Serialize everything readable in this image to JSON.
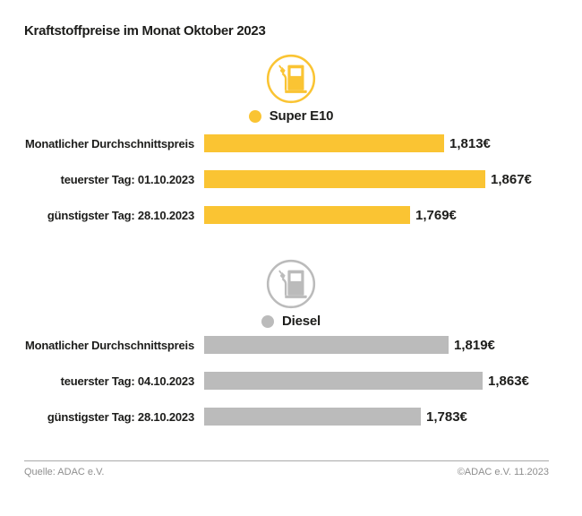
{
  "title": "Kraftstoffpreise im Monat Oktober 2023",
  "footer": {
    "source": "Quelle: ADAC e.V.",
    "copyright": "©ADAC e.V. 11.2023"
  },
  "colors": {
    "super_e10": "#FAC433",
    "diesel": "#BBBBBB",
    "text": "#1D1D1B",
    "footer_text": "#8E8E8E",
    "rule": "#A9A9A9"
  },
  "chart_data": [
    {
      "type": "bar",
      "orientation": "horizontal",
      "title": "Super E10",
      "icon": "fuel-pump-icon",
      "color": "#FAC433",
      "categories": [
        "Monatlicher Durchschnittspreis",
        "teuerster Tag: 01.10.2023",
        "günstigster Tag: 28.10.2023"
      ],
      "values": [
        1.813,
        1.867,
        1.769
      ],
      "value_labels": [
        "1,813€",
        "1,867€",
        "1,769€"
      ],
      "unit": "€",
      "xlim": [
        1.5,
        1.9
      ],
      "grid": false,
      "legend_position": "top-center"
    },
    {
      "type": "bar",
      "orientation": "horizontal",
      "title": "Diesel",
      "icon": "fuel-pump-icon",
      "color": "#BBBBBB",
      "categories": [
        "Monatlicher Durchschnittspreis",
        "teuerster Tag: 04.10.2023",
        "günstigster Tag: 28.10.2023"
      ],
      "values": [
        1.819,
        1.863,
        1.783
      ],
      "value_labels": [
        "1,819€",
        "1,863€",
        "1,783€"
      ],
      "unit": "€",
      "xlim": [
        1.5,
        1.9
      ],
      "grid": false,
      "legend_position": "top-center"
    }
  ]
}
